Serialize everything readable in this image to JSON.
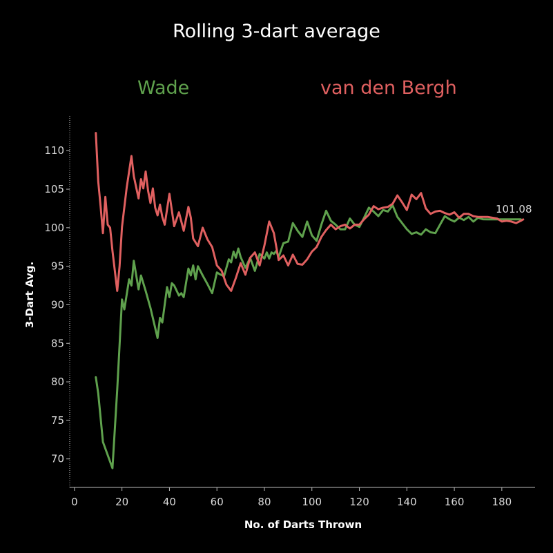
{
  "chart_data": {
    "type": "line",
    "title": "Rolling 3-dart average",
    "xlabel": "No. of Darts Thrown",
    "ylabel": "3-Dart Avg.",
    "xlim": [
      -2,
      194
    ],
    "ylim": [
      66.3,
      114.5
    ],
    "xticks": [
      0,
      20,
      40,
      60,
      80,
      100,
      120,
      140,
      160,
      180
    ],
    "yticks": [
      70,
      75,
      80,
      85,
      90,
      95,
      100,
      105,
      110
    ],
    "end_label": "101.08",
    "series": [
      {
        "name": "Wade",
        "color": "#5fa14d",
        "x": [
          9,
          10,
          12,
          14,
          16,
          18,
          20,
          21,
          23,
          24,
          25,
          27,
          28,
          30,
          32,
          34,
          35,
          36,
          37,
          39,
          40,
          41,
          42,
          44,
          45,
          46,
          48,
          49,
          50,
          51,
          52,
          54,
          56,
          58,
          60,
          61,
          63,
          65,
          66,
          67,
          68,
          69,
          70,
          72,
          74,
          76,
          78,
          80,
          81,
          82,
          83,
          84,
          85,
          86,
          88,
          90,
          92,
          94,
          96,
          98,
          100,
          102,
          104,
          106,
          108,
          110,
          112,
          114,
          116,
          118,
          120,
          122,
          124,
          126,
          128,
          130,
          132,
          134,
          136,
          138,
          140,
          142,
          144,
          146,
          148,
          150,
          152,
          154,
          156,
          158,
          160,
          162,
          164,
          166,
          168,
          170,
          172,
          174,
          176,
          178,
          180,
          182,
          184,
          186,
          188
        ],
        "y": [
          80.6,
          78.5,
          72.2,
          70.5,
          68.8,
          79,
          90.7,
          89.4,
          93.3,
          92.5,
          95.7,
          92,
          93.8,
          91.8,
          89.6,
          87,
          85.7,
          88.3,
          87.7,
          92.3,
          91,
          92.8,
          92.5,
          91.2,
          91.5,
          91.0,
          94.7,
          93.8,
          95.1,
          93.3,
          95,
          93.8,
          92.7,
          91.5,
          94.2,
          94.0,
          93.7,
          95.9,
          95.5,
          96.9,
          96.1,
          97.3,
          96.2,
          94.8,
          96.1,
          94.4,
          96.6,
          96.0,
          96.8,
          96.0,
          96.8,
          96.6,
          97.0,
          96.2,
          98,
          98.2,
          100.6,
          99.6,
          98.8,
          100.8,
          99.0,
          98.3,
          100.4,
          102.2,
          100.9,
          100.4,
          99.8,
          99.8,
          101.2,
          100.4,
          100.1,
          101.3,
          102.6,
          102.1,
          101.5,
          102.3,
          102.1,
          102.9,
          101.4,
          100.6,
          99.8,
          99.2,
          99.4,
          99.1,
          99.8,
          99.4,
          99.3,
          100.4,
          101.5,
          101.1,
          100.8,
          101.3,
          101.0,
          101.4,
          100.8,
          101.3,
          101.1,
          101.08,
          101.08,
          101.08,
          101.08,
          101.08,
          101.08,
          101.08,
          101.08
        ]
      },
      {
        "name": "van den Bergh",
        "color": "#e06060",
        "x": [
          9,
          10,
          11,
          12,
          13,
          14,
          15,
          16,
          18,
          19,
          20,
          22,
          24,
          25,
          27,
          28,
          29,
          30,
          31,
          32,
          33,
          34,
          35,
          36,
          37,
          38,
          40,
          42,
          44,
          46,
          48,
          49,
          50,
          52,
          54,
          56,
          58,
          60,
          62,
          64,
          66,
          68,
          70,
          72,
          74,
          76,
          78,
          80,
          82,
          84,
          86,
          88,
          90,
          92,
          94,
          96,
          98,
          100,
          102,
          104,
          106,
          108,
          110,
          112,
          114,
          116,
          118,
          120,
          122,
          124,
          126,
          128,
          130,
          132,
          134,
          136,
          138,
          140,
          142,
          144,
          146,
          148,
          150,
          152,
          154,
          156,
          158,
          160,
          162,
          164,
          166,
          168,
          170,
          172,
          174,
          176,
          178,
          180,
          182,
          184,
          186,
          188,
          189
        ],
        "y": [
          112.3,
          106,
          102.8,
          99.3,
          104,
          100.4,
          100,
          97,
          91.8,
          95,
          100.1,
          105.2,
          109.3,
          106.7,
          103.8,
          106.3,
          105.1,
          107.3,
          104.8,
          103.2,
          105.1,
          102.6,
          101.6,
          103,
          101.4,
          100.4,
          104.4,
          100.2,
          102,
          99.6,
          102.7,
          101.3,
          98.6,
          97.6,
          100,
          98.5,
          97.5,
          95.1,
          94.4,
          92.6,
          91.8,
          93.5,
          95.4,
          93.9,
          96.1,
          96.8,
          95.1,
          97.7,
          100.8,
          99.3,
          95.8,
          96.4,
          95.1,
          96.5,
          95.3,
          95.2,
          95.9,
          96.9,
          97.5,
          98.8,
          99.7,
          100.4,
          99.8,
          100.2,
          100.4,
          99.9,
          100.4,
          100.4,
          101.1,
          101.7,
          102.8,
          102.4,
          102.6,
          102.7,
          103.1,
          104.2,
          103.3,
          102.3,
          104.3,
          103.7,
          104.5,
          102.5,
          101.8,
          102.1,
          102.2,
          101.9,
          101.7,
          102,
          101.3,
          101.8,
          101.8,
          101.5,
          101.4,
          101.4,
          101.4,
          101.3,
          101.2,
          100.8,
          100.9,
          100.8,
          100.6,
          100.9,
          101.08
        ]
      }
    ]
  }
}
